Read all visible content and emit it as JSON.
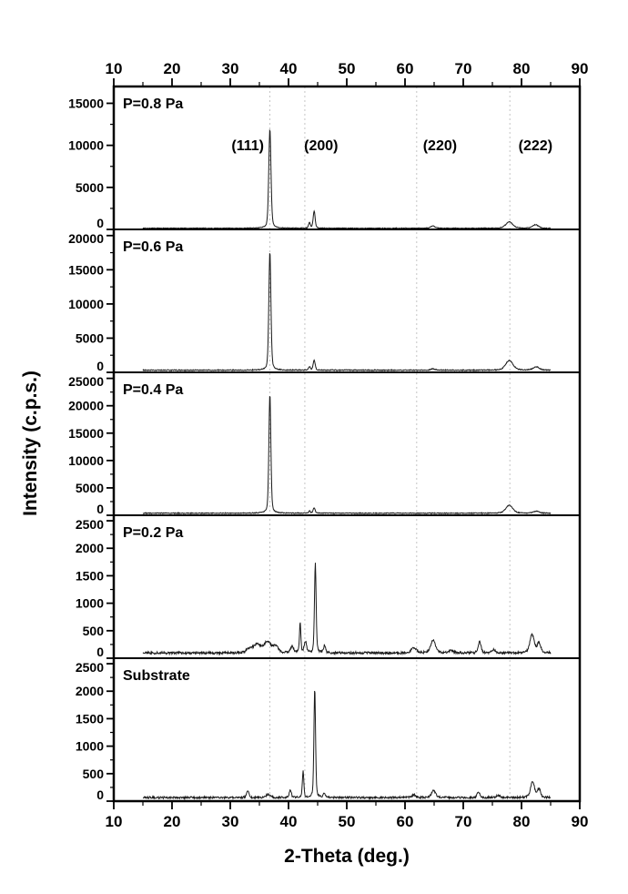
{
  "chart_data": {
    "type": "line",
    "title": "",
    "xlabel": "2-Theta (deg.)",
    "ylabel": "Intensity (c.p.s.)",
    "x_axis": {
      "min": 10,
      "max": 90,
      "major_ticks": [
        10,
        20,
        30,
        40,
        50,
        60,
        70,
        80,
        90
      ],
      "minor_interval": 5
    },
    "x_data_range": [
      15,
      85
    ],
    "reference_lines_2theta": [
      36.8,
      42.8,
      62.0,
      78.0
    ],
    "peak_annotations": [
      {
        "label": "(111)",
        "two_theta": 33.0
      },
      {
        "label": "(200)",
        "two_theta": 45.6
      },
      {
        "label": "(220)",
        "two_theta": 66.0
      },
      {
        "label": "(222)",
        "two_theta": 82.4
      }
    ],
    "peaks_format": "[two_theta_deg, intensity_cps, fwhm_deg]",
    "panels": [
      {
        "label": "P=0.8 Pa",
        "y_ticks": [
          0,
          5000,
          10000,
          15000
        ],
        "y_max": 17000,
        "baseline": 140,
        "noise": 45,
        "peaks": [
          [
            36.8,
            11800,
            0.45
          ],
          [
            43.6,
            700,
            0.35
          ],
          [
            44.4,
            2050,
            0.4
          ],
          [
            64.8,
            260,
            0.9
          ],
          [
            77.9,
            750,
            1.4
          ],
          [
            82.4,
            420,
            1.2
          ]
        ]
      },
      {
        "label": "P=0.6 Pa",
        "y_ticks": [
          0,
          5000,
          10000,
          15000,
          20000
        ],
        "y_max": 20900,
        "baseline": 320,
        "noise": 70,
        "peaks": [
          [
            36.8,
            17300,
            0.42
          ],
          [
            43.6,
            500,
            0.35
          ],
          [
            44.4,
            1500,
            0.4
          ],
          [
            64.8,
            200,
            0.9
          ],
          [
            77.9,
            1400,
            1.5
          ],
          [
            82.5,
            480,
            1.2
          ]
        ]
      },
      {
        "label": "P=0.4 Pa",
        "y_ticks": [
          0,
          5000,
          10000,
          15000,
          20000,
          25000
        ],
        "y_max": 26100,
        "baseline": 380,
        "noise": 80,
        "peaks": [
          [
            36.8,
            21800,
            0.4
          ],
          [
            43.6,
            400,
            0.35
          ],
          [
            44.4,
            1000,
            0.4
          ],
          [
            77.9,
            1450,
            1.4
          ],
          [
            82.5,
            350,
            1.2
          ]
        ]
      },
      {
        "label": "P=0.2 Pa",
        "y_ticks": [
          0,
          500,
          1000,
          1500,
          2000,
          2500
        ],
        "y_max": 2600,
        "baseline": 95,
        "noise": 22,
        "peaks": [
          [
            33.2,
            60,
            1.2
          ],
          [
            34.6,
            150,
            1.6
          ],
          [
            36.4,
            200,
            1.4
          ],
          [
            37.8,
            120,
            1.0
          ],
          [
            40.6,
            120,
            0.6
          ],
          [
            42.0,
            560,
            0.28
          ],
          [
            42.9,
            200,
            0.5
          ],
          [
            44.6,
            1630,
            0.33
          ],
          [
            46.2,
            140,
            0.4
          ],
          [
            61.5,
            90,
            1.0
          ],
          [
            64.8,
            230,
            1.0
          ],
          [
            68.0,
            40,
            1.0
          ],
          [
            72.8,
            200,
            0.6
          ],
          [
            75.2,
            60,
            0.8
          ],
          [
            81.8,
            330,
            0.9
          ],
          [
            83.0,
            180,
            0.7
          ]
        ]
      },
      {
        "label": "Substrate",
        "y_ticks": [
          0,
          500,
          1000,
          1500,
          2000,
          2500
        ],
        "y_max": 2600,
        "baseline": 65,
        "noise": 18,
        "peaks": [
          [
            33.0,
            110,
            0.5
          ],
          [
            36.5,
            60,
            0.8
          ],
          [
            40.3,
            150,
            0.4
          ],
          [
            42.5,
            480,
            0.3
          ],
          [
            44.5,
            1980,
            0.33
          ],
          [
            46.1,
            80,
            0.4
          ],
          [
            61.5,
            50,
            0.8
          ],
          [
            64.9,
            130,
            0.8
          ],
          [
            72.6,
            110,
            0.5
          ],
          [
            76.0,
            40,
            0.8
          ],
          [
            81.9,
            290,
            0.8
          ],
          [
            83.0,
            160,
            0.6
          ]
        ]
      }
    ],
    "line_color": "#1a1a1a",
    "reference_line_color": "#c4c4c4",
    "axis_color": "#000000",
    "legend": "none",
    "grid": "vertical reference lines only"
  }
}
